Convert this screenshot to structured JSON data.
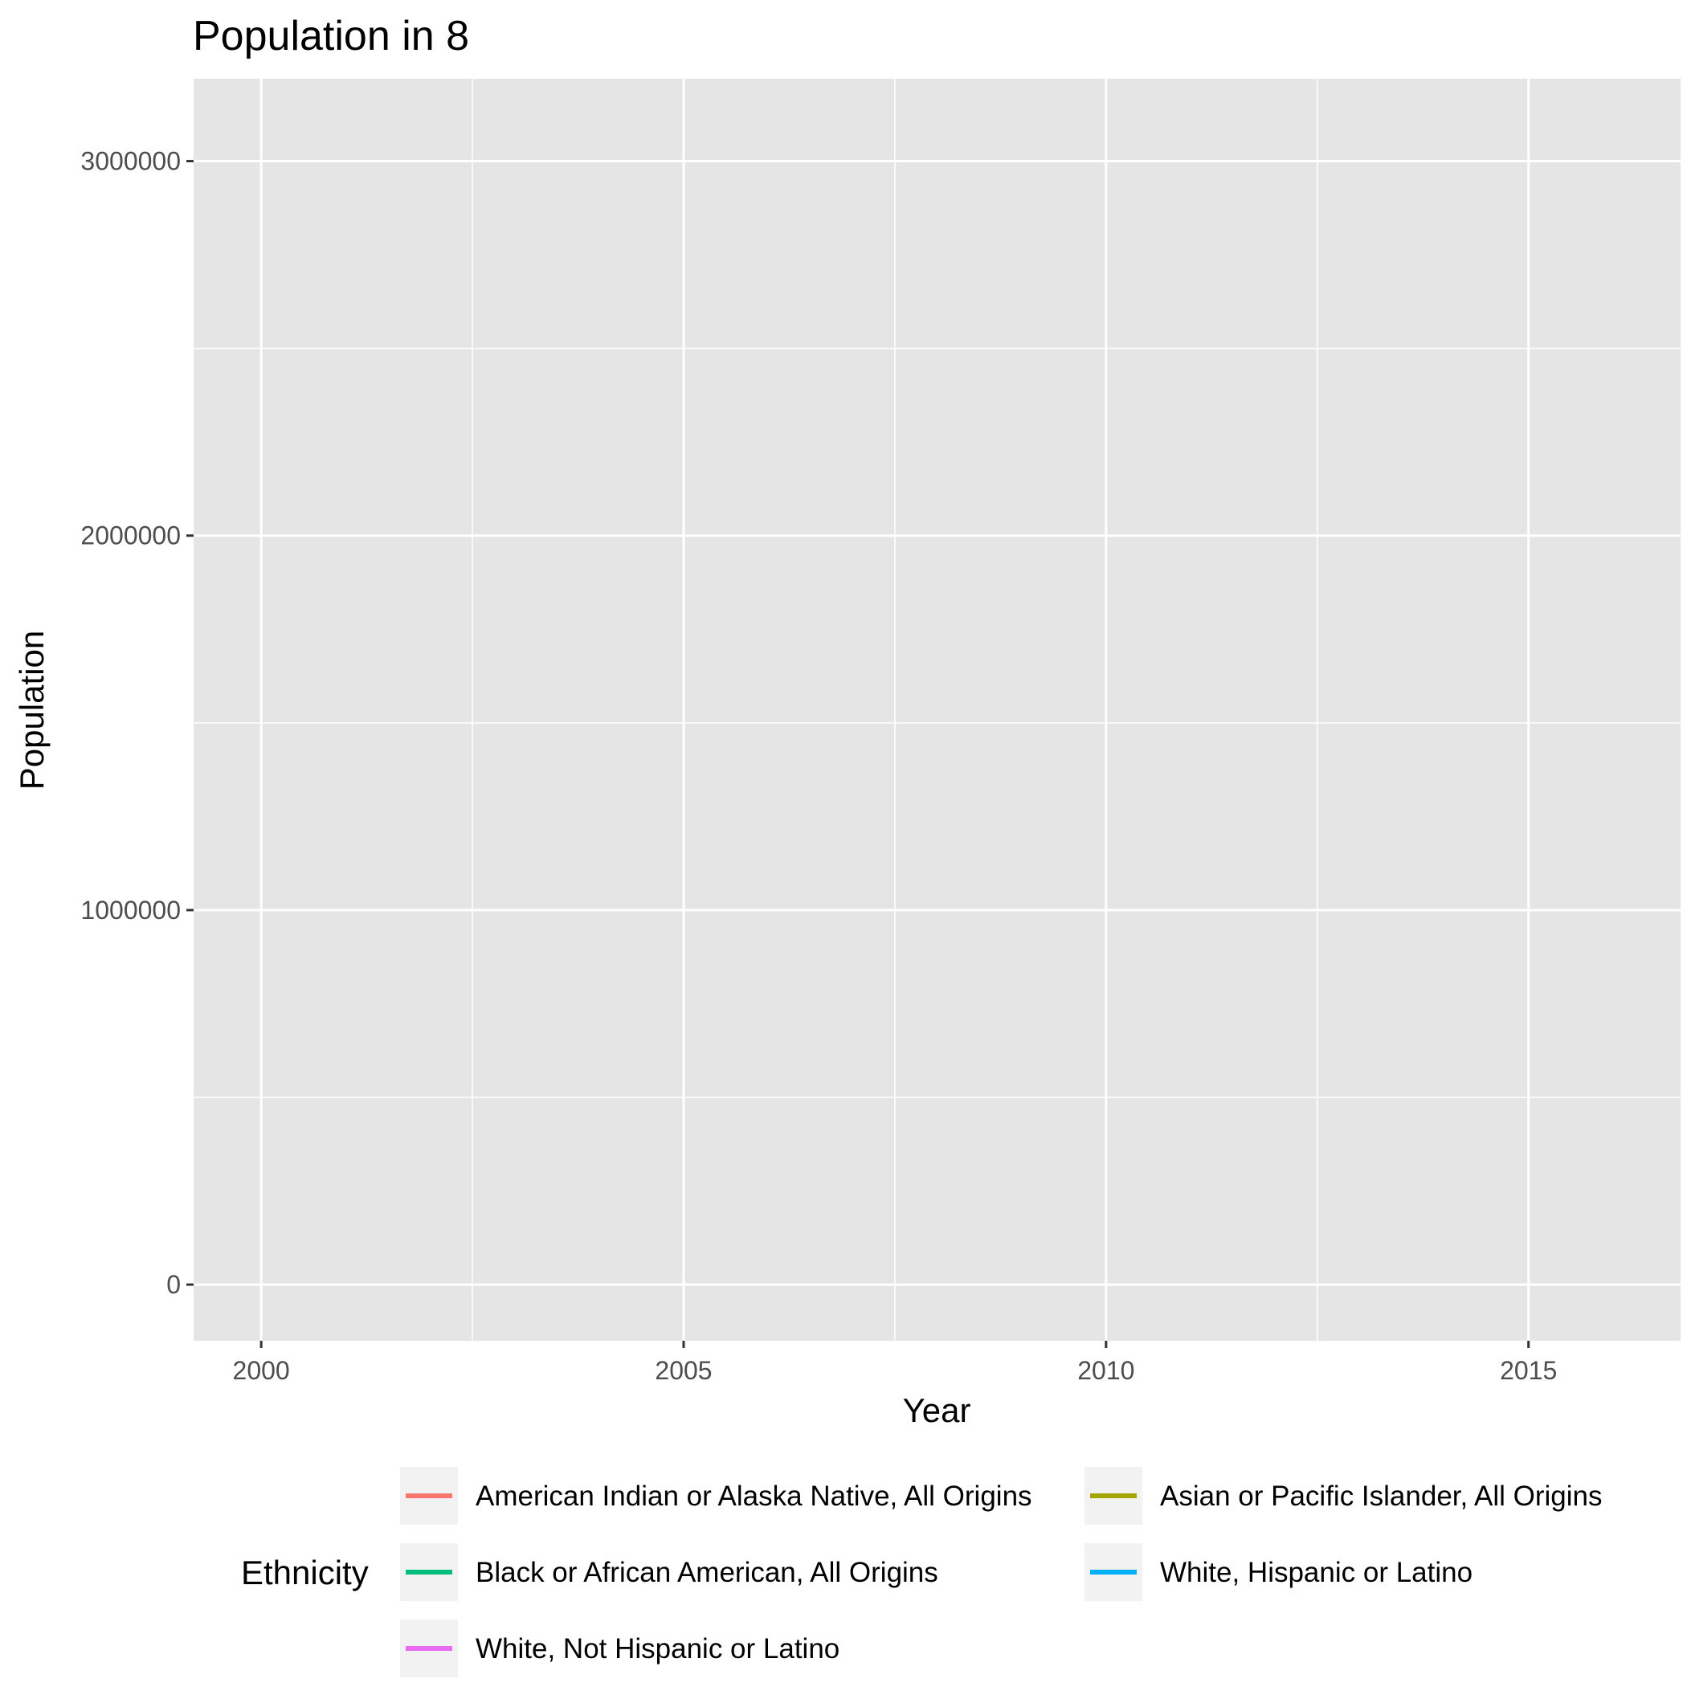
{
  "chart_data": {
    "type": "line",
    "title": "Population in 8",
    "xlabel": "Year",
    "ylabel": "Population",
    "xlim": [
      1999.2,
      2016.8
    ],
    "ylim": [
      -150000,
      3220000
    ],
    "x_ticks": [
      {
        "value": 2000,
        "label": "2000"
      },
      {
        "value": 2005,
        "label": "2005"
      },
      {
        "value": 2010,
        "label": "2010"
      },
      {
        "value": 2015,
        "label": "2015"
      }
    ],
    "x_minor_ticks": [
      2002.5,
      2007.5,
      2012.5
    ],
    "y_ticks": [
      {
        "value": 0,
        "label": "0"
      },
      {
        "value": 1000000,
        "label": "1000000"
      },
      {
        "value": 2000000,
        "label": "2000000"
      },
      {
        "value": 3000000,
        "label": "3000000"
      }
    ],
    "y_minor_ticks": [
      500000,
      1500000,
      2500000
    ],
    "grid": true,
    "legend_position": "bottom",
    "legend_title": "Ethnicity",
    "series": [
      {
        "name": "American Indian or Alaska Native, All Origins",
        "color": "#F8766D",
        "values": []
      },
      {
        "name": "Asian or Pacific Islander, All Origins",
        "color": "#A3A500",
        "values": []
      },
      {
        "name": "Black or African American, All Origins",
        "color": "#00BF7D",
        "values": []
      },
      {
        "name": "White, Hispanic or Latino",
        "color": "#00B0F6",
        "values": []
      },
      {
        "name": "White, Not Hispanic or Latino",
        "color": "#E76BF3",
        "values": []
      }
    ],
    "colors": {
      "panel_background": "#E5E5E5",
      "grid": "#FFFFFF",
      "legend_key_background": "#F2F2F2",
      "tick_text": "#4D4D4D",
      "tick_mark": "#333333"
    }
  }
}
